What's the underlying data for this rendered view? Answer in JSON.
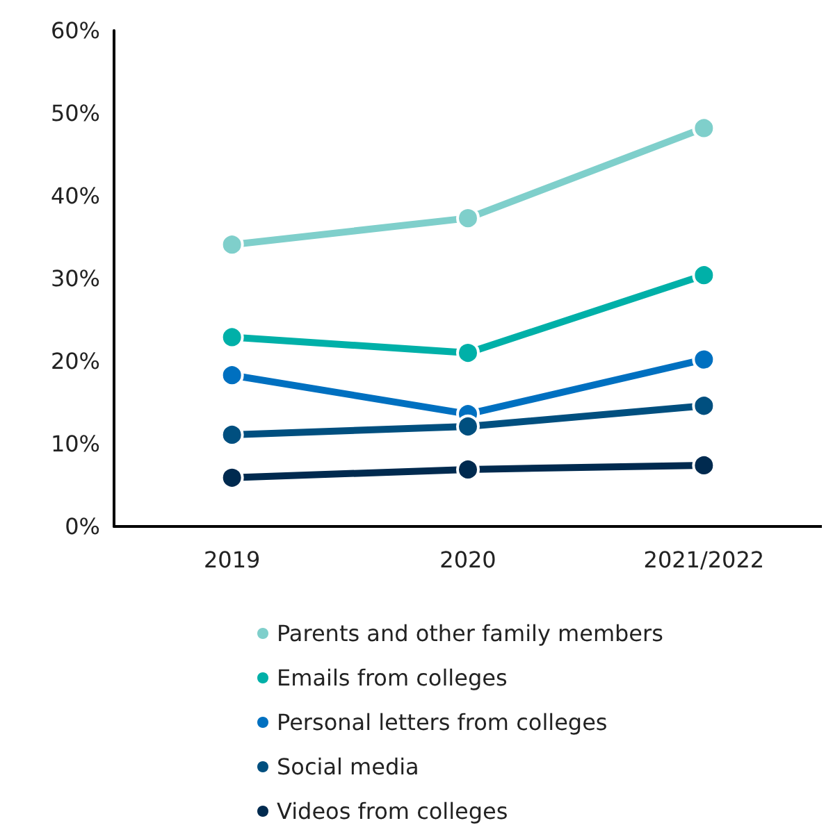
{
  "chart_data": {
    "type": "line",
    "categories": [
      "2019",
      "2020",
      "2021/2022"
    ],
    "series": [
      {
        "name": "Parents and other family members",
        "color": "#7fcfcb",
        "values": [
          34.1,
          37.3,
          48.2
        ]
      },
      {
        "name": "Emails from colleges",
        "color": "#00b0a8",
        "values": [
          22.9,
          21.0,
          30.4
        ]
      },
      {
        "name": "Personal letters from colleges",
        "color": "#0070c0",
        "values": [
          18.3,
          13.6,
          20.2
        ]
      },
      {
        "name": "Social media",
        "color": "#004f7f",
        "values": [
          11.1,
          12.1,
          14.6
        ]
      },
      {
        "name": "Videos from colleges",
        "color": "#002a4f",
        "values": [
          5.9,
          6.9,
          7.4
        ]
      }
    ],
    "ylim": [
      0,
      60
    ],
    "yticks": [
      {
        "value": 0,
        "label": "0%"
      },
      {
        "value": 10,
        "label": "10%"
      },
      {
        "value": 20,
        "label": "20%"
      },
      {
        "value": 30,
        "label": "30%"
      },
      {
        "value": 40,
        "label": "40%"
      },
      {
        "value": 50,
        "label": "50%"
      },
      {
        "value": 60,
        "label": "60%"
      }
    ],
    "grid": false,
    "legend": "bottom",
    "marker": "circle",
    "line_style": "solid"
  }
}
